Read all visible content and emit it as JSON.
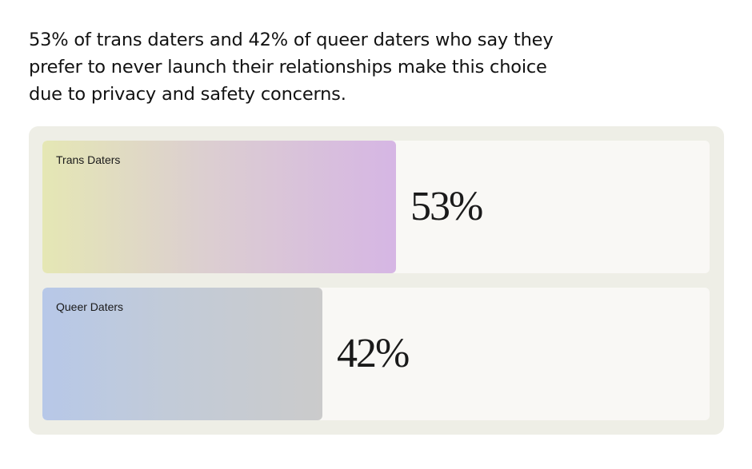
{
  "title": "53% of trans daters and 42% of queer daters who say they prefer to never launch their relationships make this choice due to privacy and safety concerns.",
  "chart_data": {
    "type": "bar",
    "orientation": "horizontal",
    "categories": [
      "Trans Daters",
      "Queer Daters"
    ],
    "values": [
      53,
      42
    ],
    "value_labels": [
      "53%",
      "42%"
    ],
    "xlim": [
      0,
      100
    ],
    "grid": false
  }
}
